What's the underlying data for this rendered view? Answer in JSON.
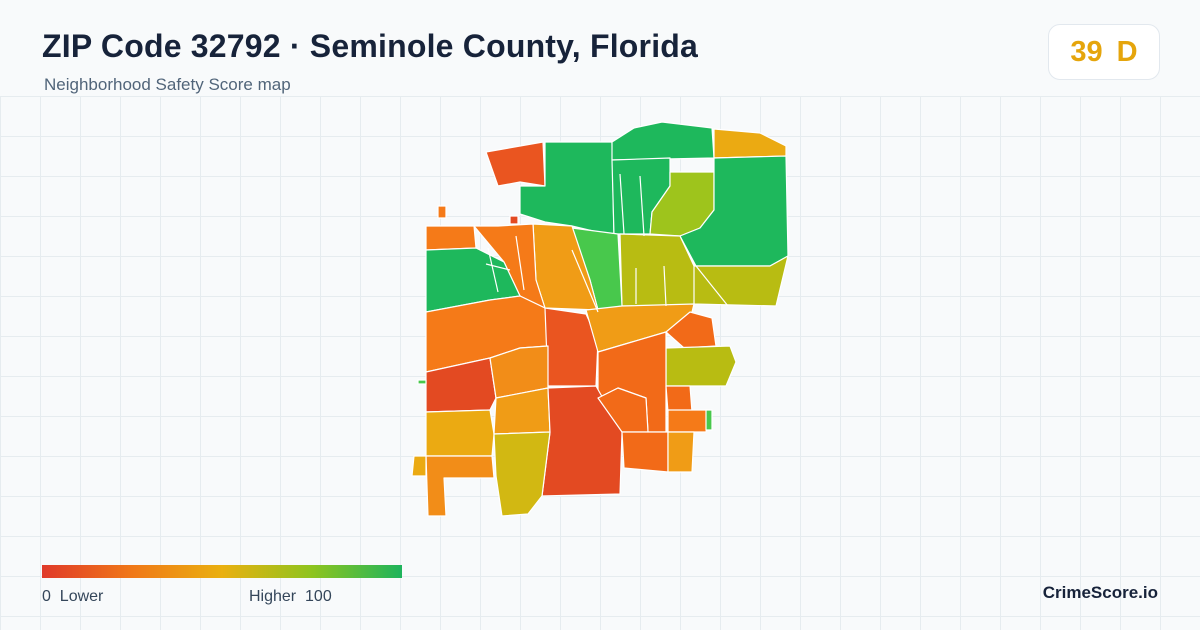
{
  "header": {
    "title": "ZIP Code 32792 · Seminole County, Florida",
    "subtitle": "Neighborhood Safety Score map"
  },
  "score": {
    "value": "39",
    "grade": "D",
    "color": "#e5a50c"
  },
  "legend": {
    "min": "0",
    "min_label": "Lower",
    "max_label": "Higher",
    "max": "100"
  },
  "brand": "CrimeScore.io",
  "colors": {
    "red": "#e34a22",
    "red_orange": "#ea5520",
    "orange_dark": "#f26a18",
    "orange": "#f57a18",
    "orange_light": "#f28d18",
    "amber": "#f09c16",
    "gold": "#ebaa12",
    "yellow": "#d2b812",
    "olive": "#b8bc12",
    "lime": "#9ec41c",
    "green_light": "#48c84c",
    "green": "#1eb85c"
  }
}
